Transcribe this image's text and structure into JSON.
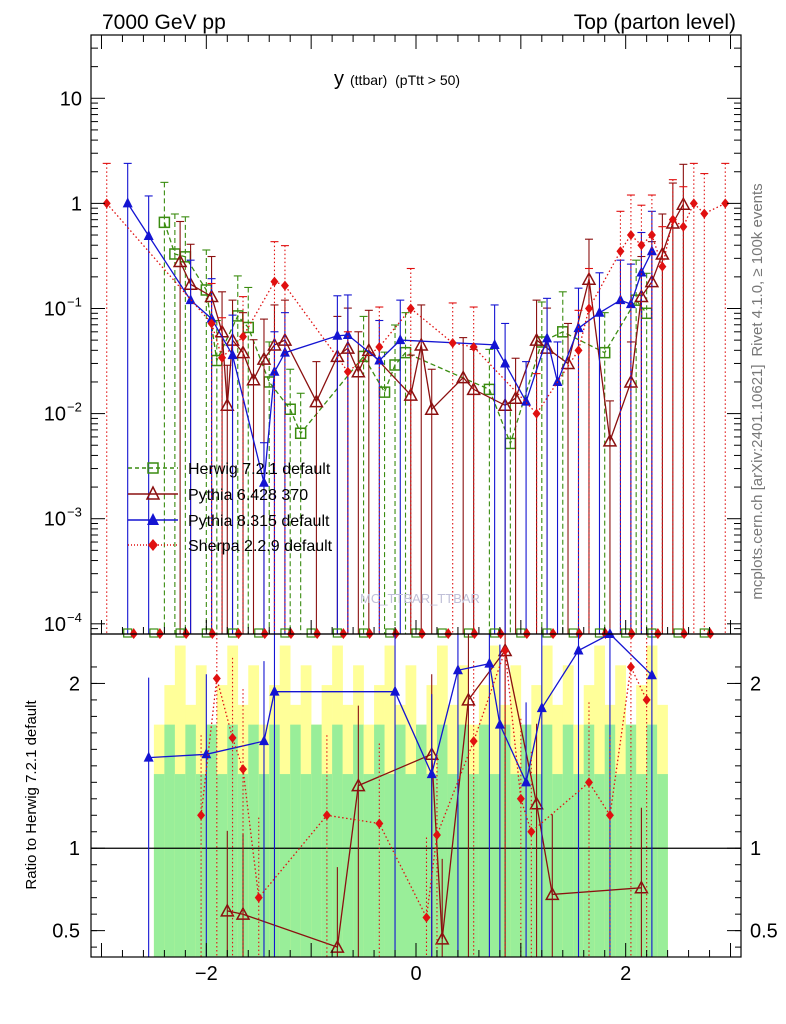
{
  "header": {
    "left": "7000 GeV pp",
    "right": "Top (parton level)"
  },
  "side": {
    "rivet": "Rivet 4.1.0, ≥ 100k events",
    "mcplots": "mcplots.cern.ch [arXiv:2401.10621]"
  },
  "plot_title": {
    "main": "y",
    "sub": "(ttbar)  (pTtt > 50)"
  },
  "watermark": "MC_TTBAR_TTBAR",
  "ratio_ylabel": "Ratio to Herwig 7.2.1 default",
  "colors": {
    "herwig": "#3a8c10",
    "pythia6": "#8b1010",
    "pythia8": "#1414d2",
    "sherpa": "#e01010",
    "band_outer": "#ffff99",
    "band_inner": "#99ee99"
  },
  "chart_data": [
    {
      "type": "line",
      "title": "y (ttbar) (pTtt > 50)",
      "xlabel": "",
      "ylabel": "",
      "yscale": "log",
      "xlim": [
        -3.1,
        3.1
      ],
      "ylim": [
        8e-05,
        40
      ],
      "x_ticks": [
        -2,
        0,
        2
      ],
      "x_tick_labels": [
        "−2",
        "0",
        "2"
      ],
      "y_tick_labels": [
        {
          "v": 10,
          "base": "10",
          "exp": ""
        },
        {
          "v": 1,
          "base": "1",
          "exp": ""
        },
        {
          "v": 0.1,
          "base": "10",
          "exp": "−1"
        },
        {
          "v": 0.01,
          "base": "10",
          "exp": "−2"
        },
        {
          "v": 0.001,
          "base": "10",
          "exp": "−3"
        },
        {
          "v": 0.0001,
          "base": "10",
          "exp": "−4"
        }
      ],
      "legend_position": "middle-left",
      "series": [
        {
          "name": "Herwig 7.2.1 default",
          "key": "herwig",
          "marker": "open-square",
          "x": [
            -2.3,
            -2.4,
            -2.2,
            -2.0,
            -1.9,
            -1.7,
            -1.6,
            -1.4,
            -1.2,
            -1.1,
            -0.5,
            -0.3,
            -0.2,
            -0.1,
            0.7,
            0.9,
            1.2,
            1.4,
            1.8,
            2.1,
            2.2
          ],
          "values": [
            0.33,
            0.66,
            0.31,
            0.15,
            0.032,
            0.085,
            0.066,
            0.02,
            0.011,
            0.0065,
            0.035,
            0.016,
            0.029,
            0.038,
            0.017,
            0.0052,
            0.048,
            0.06,
            0.038,
            0.12,
            0.09
          ]
        },
        {
          "name": "Pythia 6.428 370",
          "key": "pythia6",
          "marker": "open-triangle",
          "x": [
            -2.25,
            -2.15,
            -1.95,
            -1.85,
            -1.8,
            -1.75,
            -1.65,
            -1.55,
            -1.45,
            -1.35,
            -1.25,
            -0.95,
            -0.75,
            -0.65,
            -0.55,
            -0.45,
            -0.05,
            0.05,
            0.15,
            0.45,
            0.55,
            0.85,
            0.95,
            1.15,
            1.25,
            1.45,
            1.65,
            1.85,
            2.05,
            2.15,
            2.25,
            2.35,
            2.45,
            2.55
          ],
          "values": [
            0.28,
            0.17,
            0.13,
            0.06,
            0.012,
            0.05,
            0.038,
            0.021,
            0.033,
            0.045,
            0.05,
            0.013,
            0.035,
            0.042,
            0.025,
            0.04,
            0.015,
            0.045,
            0.011,
            0.022,
            0.017,
            0.012,
            0.014,
            0.05,
            0.042,
            0.03,
            0.19,
            0.0055,
            0.02,
            0.13,
            0.18,
            0.33,
            0.65,
            0.98
          ]
        },
        {
          "name": "Pythia 8.315 default",
          "key": "pythia8",
          "marker": "filled-triangle",
          "x": [
            -2.75,
            -2.55,
            -2.15,
            -1.95,
            -1.75,
            -1.45,
            -1.35,
            -1.25,
            -0.75,
            -0.65,
            -0.35,
            -0.15,
            0.75,
            0.85,
            1.05,
            1.25,
            1.35,
            1.55,
            1.75,
            1.95,
            2.05,
            2.15,
            2.25
          ],
          "values": [
            1.0,
            0.49,
            0.12,
            0.08,
            0.036,
            0.0022,
            0.025,
            0.038,
            0.055,
            0.056,
            0.032,
            0.05,
            0.045,
            0.03,
            0.013,
            0.052,
            0.02,
            0.065,
            0.091,
            0.12,
            0.11,
            0.22,
            0.35
          ]
        },
        {
          "name": "Sherpa 2.2.9 default",
          "key": "sherpa",
          "marker": "filled-diamond",
          "x": [
            -2.95,
            -1.95,
            -1.85,
            -1.65,
            -1.35,
            -1.25,
            -0.65,
            -0.35,
            -0.05,
            0.35,
            0.55,
            1.15,
            1.55,
            1.65,
            1.95,
            2.05,
            2.15,
            2.25,
            2.35,
            2.45,
            2.55,
            2.65,
            2.75,
            2.95
          ],
          "values": [
            1.0,
            0.072,
            0.034,
            0.054,
            0.18,
            0.165,
            0.025,
            0.043,
            0.1,
            0.047,
            0.043,
            0.01,
            0.04,
            0.1,
            0.35,
            0.5,
            0.4,
            0.5,
            0.25,
            0.7,
            0.6,
            1.0,
            0.8,
            1.0
          ]
        }
      ]
    },
    {
      "type": "line",
      "title": "",
      "xlabel": "",
      "ylabel": "Ratio to Herwig 7.2.1 default",
      "xlim": [
        -3.1,
        3.1
      ],
      "ylim": [
        0.34,
        2.3
      ],
      "y_ticks": [
        0.5,
        1,
        2
      ],
      "y_tick_labels": [
        "0.5",
        "1",
        "2"
      ],
      "reference_line": 1,
      "band_range": [
        -2.5,
        2.35
      ],
      "series": [
        {
          "name": "Pythia 6.428 370",
          "key": "pythia6",
          "x": [
            -1.8,
            -1.65,
            -0.75,
            -0.55,
            0.15,
            0.25,
            0.5,
            0.85,
            1.15,
            1.3,
            2.15
          ],
          "values": [
            0.62,
            0.6,
            0.4,
            1.38,
            1.57,
            0.45,
            1.9,
            2.2,
            1.27,
            0.72,
            0.76
          ]
        },
        {
          "name": "Pythia 8.315 default",
          "key": "pythia8",
          "x": [
            -2.55,
            -2.0,
            -1.45,
            -1.35,
            -0.2,
            0.15,
            0.4,
            0.7,
            0.8,
            1.05,
            1.2,
            1.55,
            1.85,
            2.25
          ],
          "values": [
            1.55,
            1.57,
            1.65,
            1.95,
            1.95,
            1.45,
            2.08,
            2.12,
            1.75,
            1.4,
            1.85,
            2.2,
            2.3,
            2.05
          ]
        },
        {
          "name": "Sherpa 2.2.9 default",
          "key": "sherpa",
          "x": [
            -2.05,
            -1.9,
            -1.75,
            -1.65,
            -1.5,
            -0.85,
            -0.35,
            0.1,
            0.2,
            0.55,
            0.85,
            1.0,
            1.1,
            1.65,
            1.85,
            2.05,
            2.2
          ],
          "values": [
            1.2,
            2.03,
            1.67,
            1.48,
            0.7,
            1.2,
            1.15,
            0.58,
            1.08,
            1.65,
            2.2,
            1.3,
            1.1,
            1.4,
            1.2,
            2.1,
            1.9
          ]
        }
      ]
    }
  ]
}
